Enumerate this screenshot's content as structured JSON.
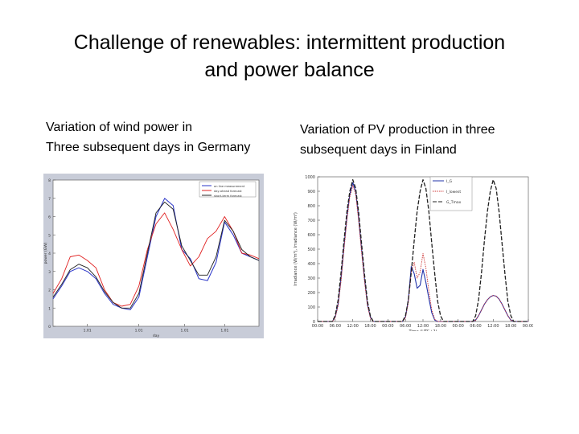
{
  "slide": {
    "title_line1": "Challenge of renewables: intermittent production",
    "title_line2": "and power balance",
    "left_caption_line1": "Variation of wind power in",
    "left_caption_line2": "Three subsequent days in Germany",
    "right_caption_line1": "Variation of PV production in three",
    "right_caption_line2": "subsequent days in Finland"
  },
  "colors": {
    "blue": "#2a34c8",
    "red": "#e02020",
    "black": "#202020",
    "wind_bg": "#c8ccd8",
    "pv_blue": "#2233aa",
    "pv_red": "#cc3333"
  },
  "chart_data": [
    {
      "type": "line",
      "xlabel": "day",
      "ylabel": "power (GW)",
      "xlim": [
        0,
        72
      ],
      "ylim": [
        0,
        8
      ],
      "yticks": [
        "0",
        "1",
        "2",
        "3",
        "4",
        "5",
        "6",
        "7",
        "8"
      ],
      "xticks": [
        {
          "x": 12,
          "label": "1.01"
        },
        {
          "x": 30,
          "label": "1.01"
        },
        {
          "x": 46,
          "label": "1.01"
        },
        {
          "x": 60,
          "label": "1.01"
        }
      ],
      "legend": [
        "on line measurement",
        "day-ahead forecast",
        "short-term forecast"
      ],
      "legend_position": "top-right",
      "x": [
        0,
        3,
        6,
        9,
        12,
        15,
        18,
        21,
        24,
        27,
        30,
        33,
        36,
        39,
        42,
        45,
        48,
        51,
        54,
        57,
        60,
        63,
        66,
        69,
        72
      ],
      "series": [
        {
          "name": "on line measurement",
          "color": "blue",
          "values": [
            1.5,
            2.2,
            3.0,
            3.2,
            3.0,
            2.6,
            1.8,
            1.2,
            1.0,
            0.9,
            1.6,
            3.8,
            6.0,
            7.0,
            6.6,
            4.2,
            3.7,
            2.6,
            2.5,
            3.5,
            5.7,
            5.0,
            4.0,
            3.8,
            3.6
          ]
        },
        {
          "name": "day-ahead forecast",
          "color": "red",
          "values": [
            1.8,
            2.6,
            3.8,
            3.9,
            3.6,
            3.2,
            2.0,
            1.3,
            1.1,
            1.2,
            2.2,
            4.2,
            5.6,
            6.2,
            5.3,
            4.2,
            3.3,
            3.8,
            4.8,
            5.2,
            6.0,
            5.2,
            4.0,
            3.9,
            3.7
          ]
        },
        {
          "name": "short-term forecast",
          "color": "black",
          "values": [
            1.6,
            2.3,
            3.1,
            3.4,
            3.2,
            2.7,
            1.9,
            1.3,
            1.0,
            1.0,
            1.8,
            4.0,
            6.2,
            6.8,
            6.4,
            4.4,
            3.6,
            2.8,
            2.8,
            3.8,
            5.8,
            5.2,
            4.2,
            3.8,
            3.6
          ]
        }
      ]
    },
    {
      "type": "line",
      "xlabel": "Time (UTC+2)",
      "ylabel": "Irradiance (W/m²), Irradiance (W/m²)",
      "xlim": [
        0,
        72
      ],
      "ylim": [
        0,
        1000
      ],
      "yticks": [
        "0",
        "100",
        "200",
        "300",
        "400",
        "500",
        "600",
        "700",
        "800",
        "900",
        "1000"
      ],
      "xticks": [
        {
          "x": 0,
          "label": "00:00"
        },
        {
          "x": 6,
          "label": "06:00"
        },
        {
          "x": 12,
          "label": "12:00"
        },
        {
          "x": 18,
          "label": "18:00"
        },
        {
          "x": 24,
          "label": "00:00"
        },
        {
          "x": 30,
          "label": "06:00"
        },
        {
          "x": 36,
          "label": "12:00"
        },
        {
          "x": 42,
          "label": "18:00"
        },
        {
          "x": 48,
          "label": "00:00"
        },
        {
          "x": 54,
          "label": "06:00"
        },
        {
          "x": 60,
          "label": "12:00"
        },
        {
          "x": 66,
          "label": "18:00"
        },
        {
          "x": 72,
          "label": "00:00"
        }
      ],
      "legend": [
        "I_G",
        "I_lowest",
        "G_Tmax"
      ],
      "legend_position": "top-right",
      "x": [
        0,
        3,
        5,
        6,
        7,
        8,
        9,
        10,
        11,
        12,
        13,
        14,
        15,
        16,
        17,
        18,
        19,
        21,
        24,
        27,
        29,
        30,
        31,
        32,
        33,
        34,
        35,
        36,
        37,
        38,
        39,
        40,
        41,
        42,
        43,
        45,
        48,
        51,
        53,
        54,
        55,
        56,
        57,
        58,
        59,
        60,
        61,
        62,
        63,
        64,
        65,
        66,
        67,
        69,
        72
      ],
      "series": [
        {
          "name": "I_G",
          "color": "pv_blue",
          "values": [
            0,
            0,
            0,
            30,
            120,
            300,
            520,
            720,
            880,
            960,
            900,
            720,
            500,
            300,
            120,
            30,
            0,
            0,
            0,
            0,
            0,
            30,
            150,
            380,
            330,
            230,
            250,
            360,
            270,
            160,
            60,
            10,
            0,
            0,
            0,
            0,
            0,
            0,
            0,
            10,
            40,
            80,
            120,
            150,
            170,
            180,
            175,
            155,
            120,
            80,
            40,
            10,
            0,
            0,
            0
          ]
        },
        {
          "name": "I_lowest",
          "color": "pv_red",
          "values": [
            0,
            0,
            0,
            25,
            110,
            280,
            500,
            700,
            860,
            940,
            880,
            700,
            480,
            280,
            110,
            25,
            0,
            0,
            0,
            0,
            0,
            25,
            130,
            340,
            410,
            300,
            340,
            470,
            370,
            210,
            80,
            15,
            0,
            0,
            0,
            0,
            0,
            0,
            0,
            10,
            40,
            80,
            120,
            150,
            170,
            180,
            175,
            155,
            120,
            80,
            40,
            10,
            0,
            0,
            0
          ]
        },
        {
          "name": "G_Tmax",
          "color": "black",
          "values": [
            0,
            0,
            0,
            40,
            150,
            340,
            560,
            760,
            900,
            980,
            920,
            760,
            540,
            330,
            140,
            40,
            0,
            0,
            0,
            0,
            0,
            40,
            150,
            340,
            560,
            760,
            900,
            980,
            920,
            760,
            540,
            330,
            140,
            40,
            0,
            0,
            0,
            0,
            0,
            40,
            150,
            340,
            560,
            760,
            900,
            980,
            920,
            760,
            540,
            330,
            140,
            40,
            0,
            0,
            0
          ]
        }
      ]
    }
  ]
}
